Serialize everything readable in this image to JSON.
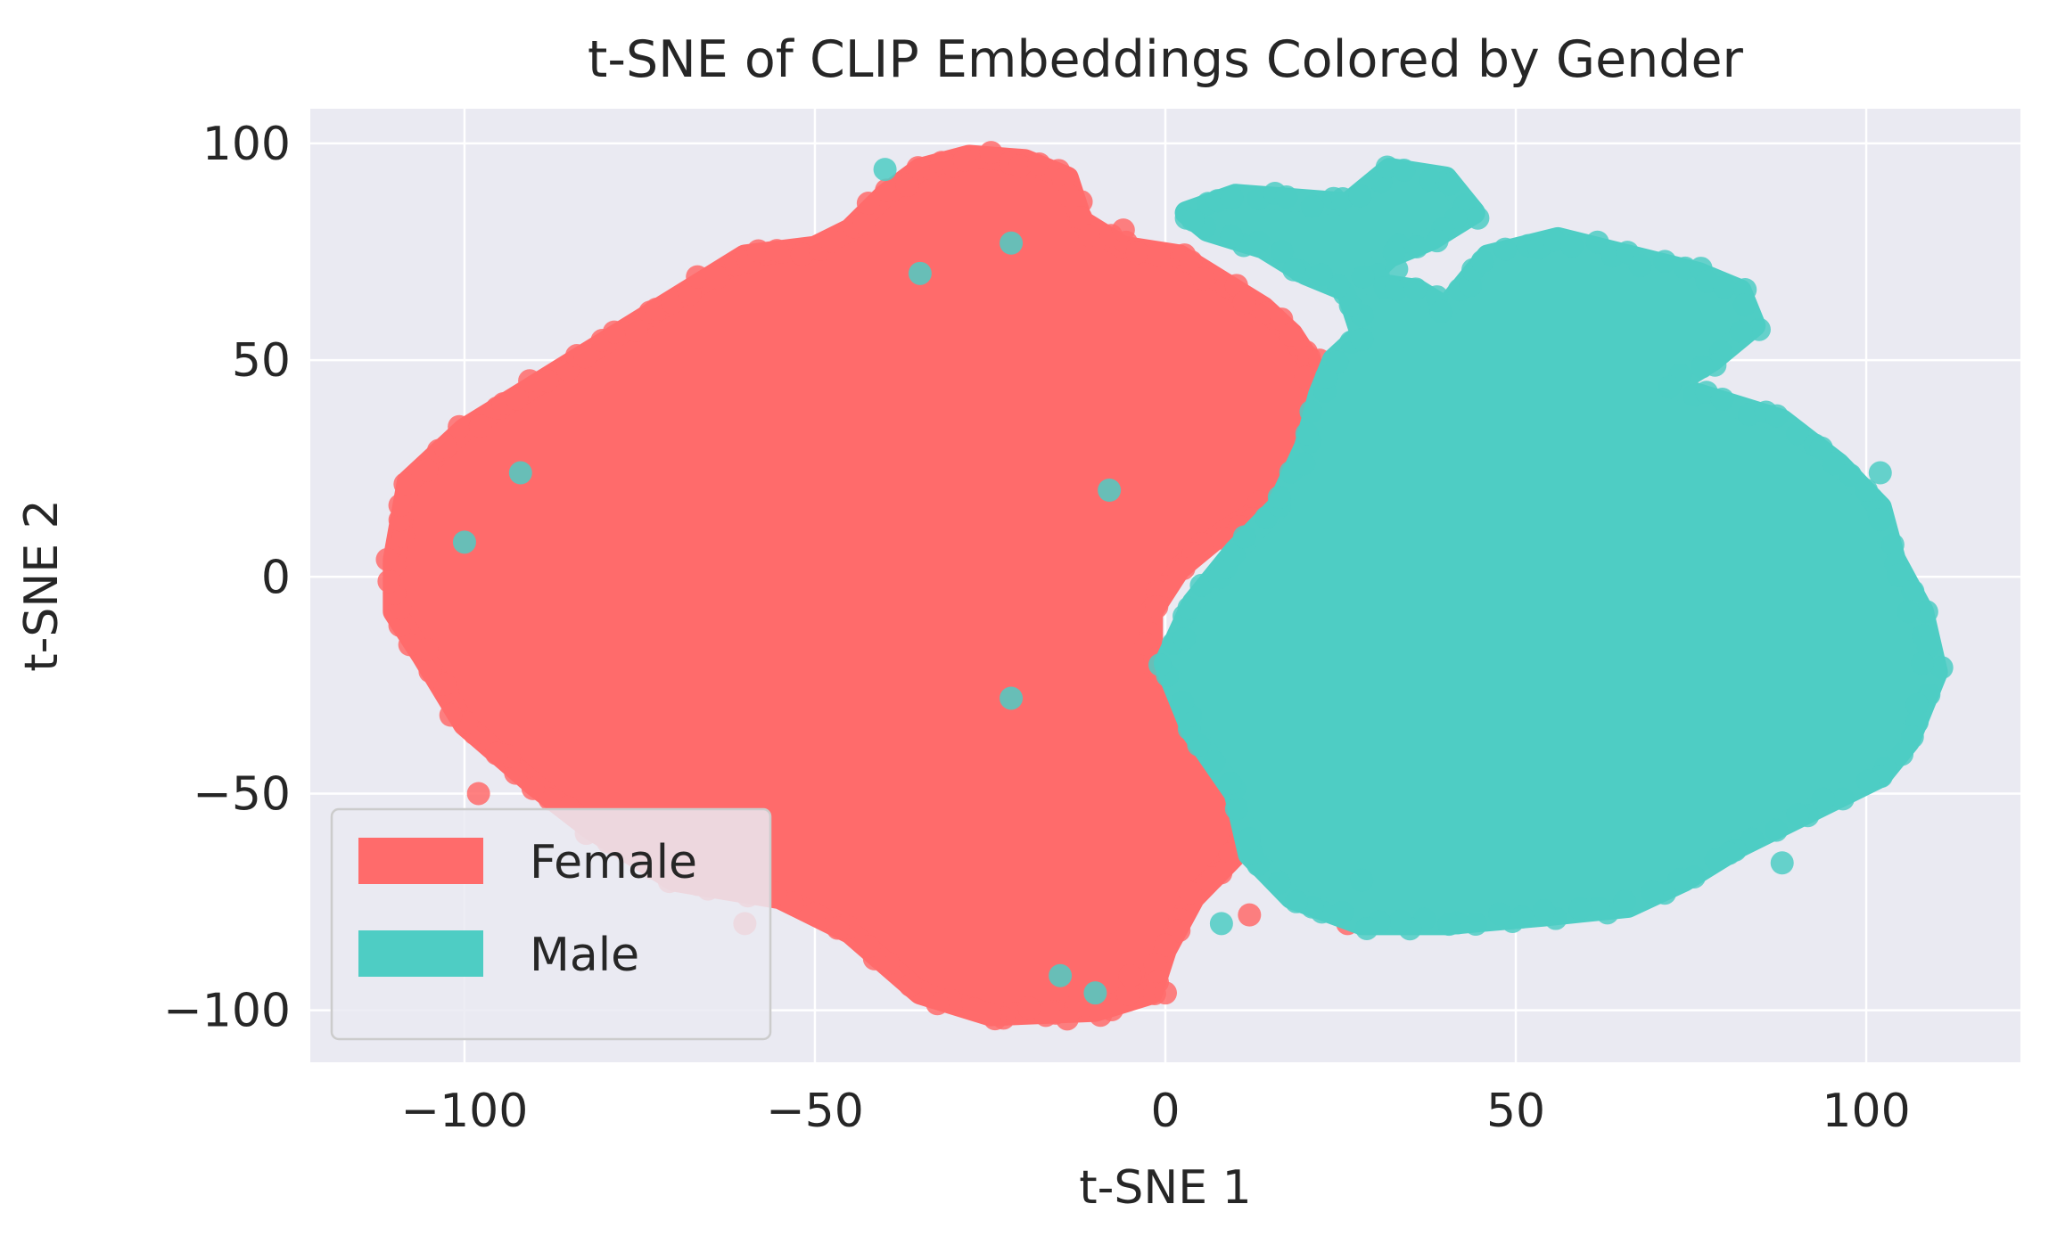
{
  "chart_data": {
    "type": "scatter",
    "title": "t-SNE of CLIP Embeddings Colored by Gender",
    "xlabel": "t-SNE 1",
    "ylabel": "t-SNE 2",
    "xlim": [
      -122,
      122
    ],
    "ylim": [
      -112,
      108
    ],
    "xticks": [
      -100,
      -50,
      0,
      50,
      100
    ],
    "yticks": [
      -100,
      -50,
      0,
      50,
      100
    ],
    "grid": true,
    "legend_position": "lower-left",
    "background": "#EAEAF2",
    "series": [
      {
        "name": "Female",
        "color": "#FF6B6B",
        "outline": [
          [
            -110,
            4
          ],
          [
            -108,
            22
          ],
          [
            -100,
            34
          ],
          [
            -90,
            44
          ],
          [
            -80,
            54
          ],
          [
            -68,
            66
          ],
          [
            -60,
            74
          ],
          [
            -50,
            76
          ],
          [
            -45,
            80
          ],
          [
            -40,
            88
          ],
          [
            -35,
            94
          ],
          [
            -28,
            97
          ],
          [
            -20,
            96
          ],
          [
            -14,
            92
          ],
          [
            -12,
            82
          ],
          [
            -6,
            76
          ],
          [
            2,
            74
          ],
          [
            8,
            68
          ],
          [
            14,
            62
          ],
          [
            18,
            56
          ],
          [
            22,
            46
          ],
          [
            26,
            36
          ],
          [
            22,
            26
          ],
          [
            16,
            18
          ],
          [
            8,
            10
          ],
          [
            2,
            2
          ],
          [
            -2,
            -8
          ],
          [
            -2,
            -20
          ],
          [
            4,
            -30
          ],
          [
            10,
            -42
          ],
          [
            12,
            -54
          ],
          [
            10,
            -64
          ],
          [
            4,
            -74
          ],
          [
            0,
            -86
          ],
          [
            -2,
            -96
          ],
          [
            -10,
            -100
          ],
          [
            -25,
            -101
          ],
          [
            -35,
            -96
          ],
          [
            -45,
            -82
          ],
          [
            -55,
            -74
          ],
          [
            -70,
            -70
          ],
          [
            -82,
            -58
          ],
          [
            -90,
            -48
          ],
          [
            -100,
            -34
          ],
          [
            -106,
            -18
          ],
          [
            -110,
            -8
          ]
        ],
        "outliers": [
          [
            -111,
            4
          ],
          [
            -98,
            -50
          ],
          [
            -60,
            -80
          ],
          [
            -25,
            -101
          ],
          [
            -14,
            -102
          ],
          [
            -6,
            80
          ],
          [
            20,
            46
          ],
          [
            22,
            50
          ],
          [
            12,
            -78
          ],
          [
            0,
            -96
          ],
          [
            -5,
            -92
          ],
          [
            25,
            -64
          ],
          [
            26,
            -80
          ]
        ]
      },
      {
        "name": "Male",
        "color": "#4ECDC4",
        "outline": [
          [
            3,
            84
          ],
          [
            10,
            88
          ],
          [
            18,
            87
          ],
          [
            26,
            86
          ],
          [
            32,
            94
          ],
          [
            40,
            92
          ],
          [
            44,
            84
          ],
          [
            38,
            78
          ],
          [
            32,
            74
          ],
          [
            28,
            68
          ],
          [
            36,
            66
          ],
          [
            40,
            62
          ],
          [
            46,
            74
          ],
          [
            56,
            78
          ],
          [
            66,
            74
          ],
          [
            76,
            70
          ],
          [
            82,
            66
          ],
          [
            84,
            58
          ],
          [
            78,
            50
          ],
          [
            72,
            44
          ],
          [
            80,
            40
          ],
          [
            88,
            36
          ],
          [
            96,
            26
          ],
          [
            102,
            16
          ],
          [
            104,
            4
          ],
          [
            108,
            -8
          ],
          [
            110,
            -22
          ],
          [
            106,
            -38
          ],
          [
            102,
            -46
          ],
          [
            92,
            -54
          ],
          [
            82,
            -62
          ],
          [
            74,
            -70
          ],
          [
            66,
            -76
          ],
          [
            54,
            -78
          ],
          [
            40,
            -80
          ],
          [
            28,
            -80
          ],
          [
            18,
            -74
          ],
          [
            12,
            -64
          ],
          [
            10,
            -50
          ],
          [
            4,
            -36
          ],
          [
            0,
            -20
          ],
          [
            4,
            -6
          ],
          [
            10,
            6
          ],
          [
            16,
            16
          ],
          [
            20,
            30
          ],
          [
            22,
            42
          ],
          [
            24,
            50
          ],
          [
            28,
            56
          ],
          [
            26,
            66
          ],
          [
            20,
            70
          ],
          [
            14,
            76
          ],
          [
            6,
            80
          ]
        ],
        "outliers": [
          [
            -40,
            94
          ],
          [
            -22,
            77
          ],
          [
            -35,
            70
          ],
          [
            88,
            -66
          ],
          [
            106,
            -8
          ],
          [
            108,
            -20
          ],
          [
            100,
            20
          ],
          [
            -22,
            -28
          ],
          [
            -15,
            -92
          ],
          [
            -10,
            -96
          ],
          [
            8,
            -80
          ],
          [
            28,
            -70
          ],
          [
            33,
            71
          ],
          [
            102,
            24
          ],
          [
            -8,
            20
          ],
          [
            -92,
            24
          ],
          [
            -100,
            8
          ]
        ]
      }
    ]
  }
}
